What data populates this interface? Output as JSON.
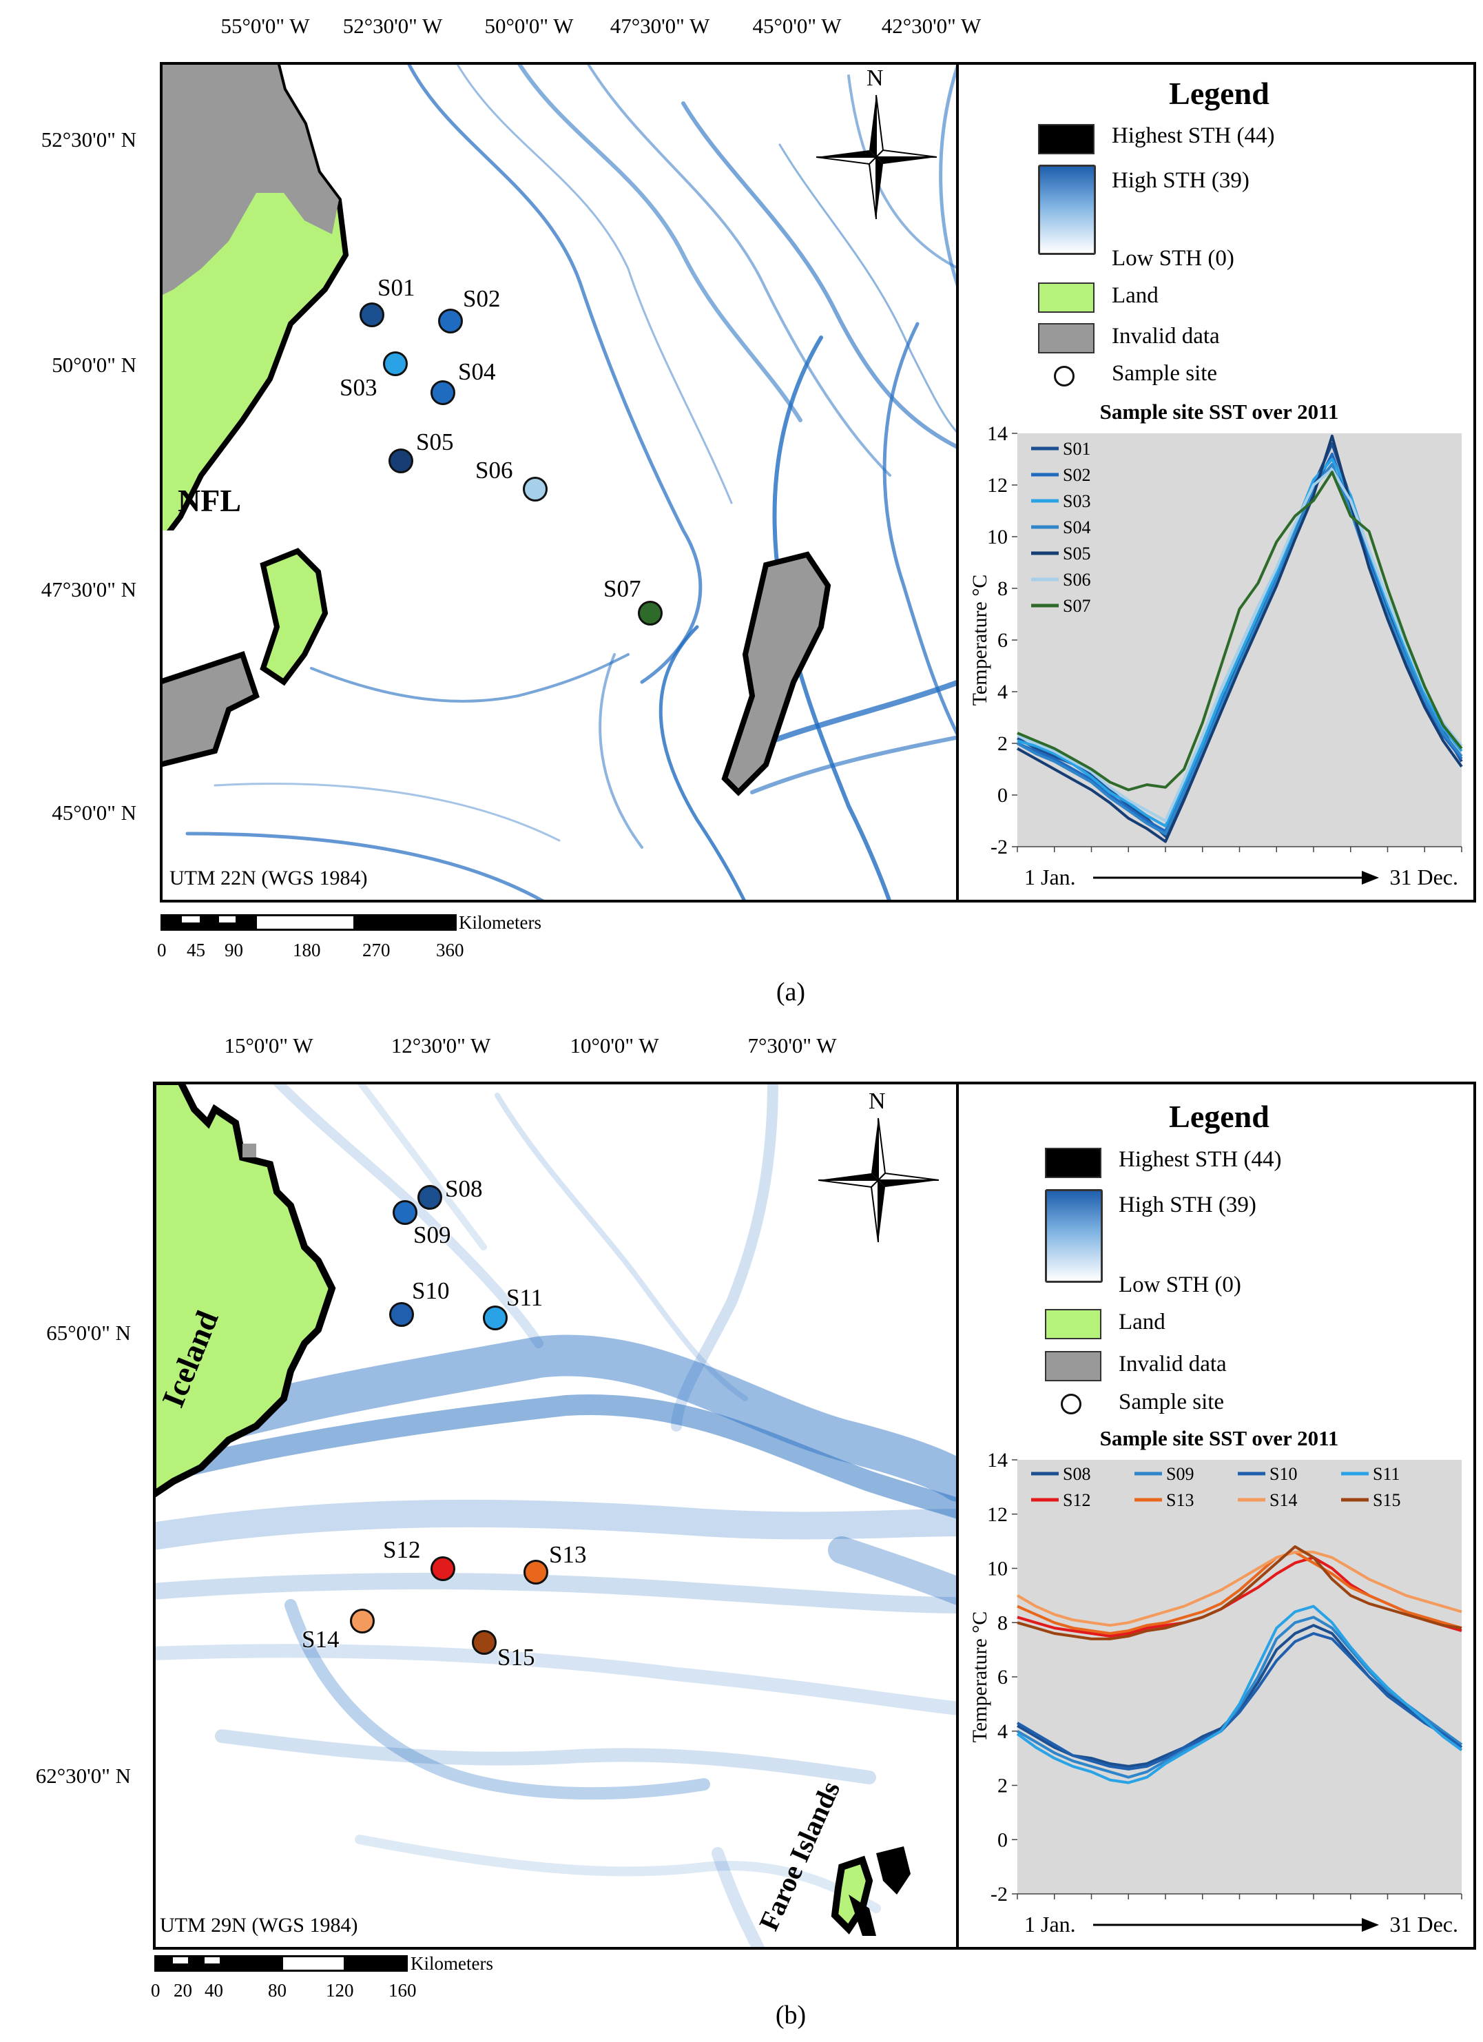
{
  "panel_a": {
    "caption": "(a)",
    "lon_labels": [
      "55°0'0\" W",
      "52°30'0\" W",
      "50°0'0\" W",
      "47°30'0\" W",
      "45°0'0\" W",
      "42°30'0\" W"
    ],
    "lat_labels": [
      "52°30'0\" N",
      "50°0'0\" N",
      "47°30'0\" N",
      "45°0'0\" N"
    ],
    "region_label": "NFL",
    "datum": "UTM 22N (WGS 1984)",
    "north": "N",
    "sites": [
      {
        "id": "S01",
        "color": "#1c4f8f"
      },
      {
        "id": "S02",
        "color": "#1f6bc0"
      },
      {
        "id": "S03",
        "color": "#2aa3e6"
      },
      {
        "id": "S04",
        "color": "#1f6bc0"
      },
      {
        "id": "S05",
        "color": "#163e74"
      },
      {
        "id": "S06",
        "color": "#a6cfea"
      },
      {
        "id": "S07",
        "color": "#2e6b2a"
      }
    ],
    "scale": {
      "unit": "Kilometers",
      "ticks": [
        "0",
        "45",
        "90",
        "180",
        "270",
        "360"
      ]
    },
    "legend": {
      "title": "Legend",
      "items": [
        "Highest STH (44)",
        "High STH (39)",
        "Low STH (0)",
        "Land",
        "Invalid data",
        "Sample site"
      ]
    }
  },
  "panel_b": {
    "caption": "(b)",
    "lon_labels": [
      "15°0'0\" W",
      "12°30'0\" W",
      "10°0'0\" W",
      "7°30'0\" W"
    ],
    "lat_labels": [
      "65°0'0\" N",
      "62°30'0\" N"
    ],
    "region_label": "Iceland",
    "region_label_2": "Faroe Islands",
    "datum": "UTM 29N (WGS 1984)",
    "north": "N",
    "sites": [
      {
        "id": "S08",
        "color": "#1c4f8f"
      },
      {
        "id": "S09",
        "color": "#1f6bc0"
      },
      {
        "id": "S10",
        "color": "#1f5fae"
      },
      {
        "id": "S11",
        "color": "#2aa3e6"
      },
      {
        "id": "S12",
        "color": "#e31a1c"
      },
      {
        "id": "S13",
        "color": "#e8671c"
      },
      {
        "id": "S14",
        "color": "#f49a5c"
      },
      {
        "id": "S15",
        "color": "#9c4312"
      }
    ],
    "scale": {
      "unit": "Kilometers",
      "ticks": [
        "0",
        "20",
        "40",
        "80",
        "120",
        "160"
      ]
    },
    "legend": {
      "title": "Legend",
      "items": [
        "Highest STH (44)",
        "High STH (39)",
        "Low STH (0)",
        "Land",
        "Invalid data",
        "Sample site"
      ]
    }
  },
  "colors": {
    "land": "#b6f27a",
    "invalid": "#999999",
    "sth_high": "#1f6bc0",
    "chart_bg": "#d9d9d9"
  },
  "chart_data": [
    {
      "type": "line",
      "title": "Sample site SST over 2011",
      "ylabel": "Temperature °C",
      "xlabel_start": "1 Jan.",
      "xlabel_end": "31 Dec.",
      "ylim": [
        -2,
        14
      ],
      "yticks": [
        "-2",
        "0",
        "2",
        "4",
        "6",
        "8",
        "10",
        "12",
        "14"
      ],
      "x": [
        0,
        1,
        2,
        3,
        4,
        5,
        6,
        7,
        8,
        9,
        10,
        11,
        12,
        13,
        14,
        15,
        16,
        17,
        18,
        19,
        20,
        21,
        22,
        23,
        24
      ],
      "series": [
        {
          "name": "S01",
          "color": "#1c4f8f",
          "values": [
            2.2,
            1.8,
            1.5,
            1.2,
            0.8,
            0.2,
            -0.4,
            -0.9,
            -1.6,
            0.0,
            1.5,
            3.5,
            5.2,
            6.8,
            8.5,
            10.2,
            12.0,
            13.6,
            11.5,
            9.0,
            7.2,
            5.5,
            3.8,
            2.5,
            1.3
          ]
        },
        {
          "name": "S02",
          "color": "#1f6bc0",
          "values": [
            2.0,
            1.7,
            1.4,
            1.0,
            0.6,
            0.0,
            -0.5,
            -1.0,
            -1.4,
            0.2,
            1.8,
            3.6,
            5.0,
            6.6,
            8.4,
            10.0,
            11.8,
            13.2,
            11.2,
            9.2,
            7.0,
            5.2,
            3.6,
            2.3,
            1.4
          ]
        },
        {
          "name": "S03",
          "color": "#2aa3e6",
          "values": [
            2.1,
            1.9,
            1.6,
            1.2,
            0.7,
            0.1,
            -0.3,
            -0.8,
            -1.2,
            0.4,
            2.0,
            3.8,
            5.4,
            7.0,
            8.6,
            10.4,
            12.2,
            13.0,
            11.6,
            9.4,
            7.4,
            5.6,
            3.9,
            2.6,
            1.7
          ]
        },
        {
          "name": "S04",
          "color": "#2f85c9",
          "values": [
            2.0,
            1.6,
            1.3,
            0.9,
            0.5,
            -0.1,
            -0.6,
            -1.1,
            -1.5,
            0.1,
            1.7,
            3.4,
            5.1,
            6.7,
            8.3,
            10.1,
            11.9,
            12.8,
            11.0,
            8.9,
            7.0,
            5.3,
            3.7,
            2.4,
            1.5
          ]
        },
        {
          "name": "S05",
          "color": "#163e74",
          "values": [
            1.8,
            1.4,
            1.0,
            0.6,
            0.2,
            -0.3,
            -0.9,
            -1.3,
            -1.8,
            -0.2,
            1.5,
            3.2,
            4.9,
            6.5,
            8.1,
            9.9,
            11.6,
            13.9,
            11.3,
            8.8,
            6.8,
            5.0,
            3.4,
            2.1,
            1.1
          ]
        },
        {
          "name": "S06",
          "color": "#a6cfea",
          "values": [
            2.3,
            2.0,
            1.7,
            1.3,
            0.9,
            0.3,
            -0.2,
            -0.6,
            -1.0,
            0.6,
            2.3,
            4.1,
            5.7,
            7.3,
            8.8,
            10.5,
            12.0,
            12.6,
            11.4,
            9.5,
            7.6,
            5.8,
            4.1,
            2.8,
            1.9
          ]
        },
        {
          "name": "S07",
          "color": "#2e6b2a",
          "values": [
            2.4,
            2.1,
            1.8,
            1.4,
            1.0,
            0.5,
            0.2,
            0.4,
            0.3,
            1.0,
            2.8,
            5.0,
            7.2,
            8.2,
            9.8,
            10.8,
            11.4,
            12.5,
            10.8,
            10.2,
            8.0,
            6.0,
            4.2,
            2.7,
            1.8
          ]
        }
      ]
    },
    {
      "type": "line",
      "title": "Sample site SST over 2011",
      "ylabel": "Temperature °C",
      "xlabel_start": "1 Jan.",
      "xlabel_end": "31 Dec.",
      "ylim": [
        -2,
        14
      ],
      "yticks": [
        "-2",
        "0",
        "2",
        "4",
        "6",
        "8",
        "10",
        "12",
        "14"
      ],
      "x": [
        0,
        1,
        2,
        3,
        4,
        5,
        6,
        7,
        8,
        9,
        10,
        11,
        12,
        13,
        14,
        15,
        16,
        17,
        18,
        19,
        20,
        21,
        22,
        23,
        24
      ],
      "series": [
        {
          "name": "S08",
          "color": "#1c4f8f",
          "values": [
            4.2,
            3.8,
            3.4,
            3.1,
            3.0,
            2.8,
            2.7,
            2.8,
            3.1,
            3.4,
            3.8,
            4.1,
            4.8,
            5.8,
            7.0,
            7.6,
            7.9,
            7.6,
            6.8,
            6.0,
            5.4,
            4.9,
            4.4,
            3.9,
            3.5
          ]
        },
        {
          "name": "S09",
          "color": "#2f85c9",
          "values": [
            4.0,
            3.6,
            3.2,
            2.9,
            2.7,
            2.5,
            2.3,
            2.5,
            2.9,
            3.3,
            3.7,
            4.0,
            4.9,
            6.0,
            7.4,
            8.0,
            8.2,
            7.8,
            7.0,
            6.2,
            5.5,
            5.0,
            4.5,
            4.0,
            3.5
          ]
        },
        {
          "name": "S10",
          "color": "#1f5fae",
          "values": [
            4.3,
            3.9,
            3.5,
            3.1,
            2.9,
            2.7,
            2.6,
            2.7,
            3.0,
            3.4,
            3.7,
            4.0,
            4.7,
            5.6,
            6.6,
            7.3,
            7.6,
            7.4,
            6.7,
            6.0,
            5.3,
            4.8,
            4.3,
            3.9,
            3.4
          ]
        },
        {
          "name": "S11",
          "color": "#2aa3e6",
          "values": [
            3.9,
            3.4,
            3.0,
            2.7,
            2.5,
            2.2,
            2.1,
            2.3,
            2.8,
            3.2,
            3.6,
            4.0,
            5.0,
            6.4,
            7.8,
            8.4,
            8.6,
            8.0,
            7.1,
            6.3,
            5.6,
            5.0,
            4.4,
            3.8,
            3.3
          ]
        },
        {
          "name": "S12",
          "color": "#e31a1c",
          "values": [
            8.2,
            8.0,
            7.8,
            7.7,
            7.6,
            7.5,
            7.6,
            7.8,
            7.9,
            8.0,
            8.2,
            8.5,
            8.9,
            9.3,
            9.8,
            10.2,
            10.4,
            10.0,
            9.4,
            9.0,
            8.7,
            8.4,
            8.1,
            7.9,
            7.7
          ]
        },
        {
          "name": "S13",
          "color": "#e8671c",
          "values": [
            8.6,
            8.3,
            8.0,
            7.8,
            7.7,
            7.6,
            7.7,
            7.9,
            8.0,
            8.2,
            8.4,
            8.7,
            9.2,
            9.8,
            10.4,
            10.6,
            10.2,
            9.8,
            9.3,
            9.0,
            8.7,
            8.4,
            8.2,
            8.0,
            7.8
          ]
        },
        {
          "name": "S14",
          "color": "#f49a5c",
          "values": [
            9.0,
            8.6,
            8.3,
            8.1,
            8.0,
            7.9,
            8.0,
            8.2,
            8.4,
            8.6,
            8.9,
            9.2,
            9.6,
            10.0,
            10.4,
            10.6,
            10.6,
            10.4,
            10.0,
            9.6,
            9.3,
            9.0,
            8.8,
            8.6,
            8.4
          ]
        },
        {
          "name": "S15",
          "color": "#9c4312",
          "values": [
            8.0,
            7.8,
            7.6,
            7.5,
            7.4,
            7.4,
            7.5,
            7.7,
            7.8,
            8.0,
            8.2,
            8.5,
            9.0,
            9.6,
            10.2,
            10.8,
            10.4,
            9.6,
            9.0,
            8.7,
            8.5,
            8.3,
            8.1,
            7.9,
            7.8
          ]
        }
      ]
    }
  ]
}
